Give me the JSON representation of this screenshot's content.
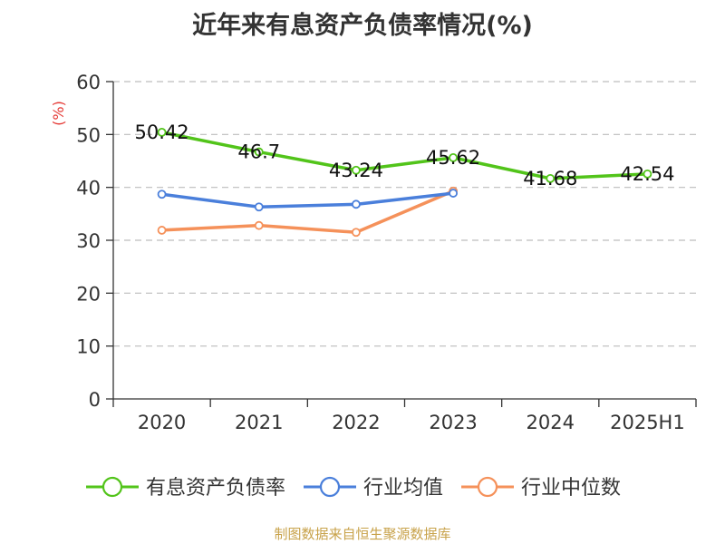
{
  "title": "近年来有息资产负债率情况(%)",
  "source_note": "制图数据来自恒生聚源数据库",
  "chart_data": {
    "type": "line",
    "title": "近年来有息资产负债率情况(%)",
    "xlabel": "",
    "ylabel": "(%)",
    "categories": [
      "2020",
      "2021",
      "2022",
      "2023",
      "2024",
      "2025H1"
    ],
    "ylim": [
      0,
      60
    ],
    "yticks": [
      0,
      10,
      20,
      30,
      40,
      50,
      60
    ],
    "grid": true,
    "legend_position": "bottom",
    "series": [
      {
        "name": "有息资产负债率",
        "color": "#52c41a",
        "values": [
          50.42,
          46.7,
          43.24,
          45.62,
          41.68,
          42.54
        ],
        "labels": [
          "50.42",
          "46.7",
          "43.24",
          "45.62",
          "41.68",
          "42.54"
        ],
        "show_labels": true
      },
      {
        "name": "行业均值",
        "color": "#4a7fdb",
        "values": [
          38.7,
          36.3,
          36.8,
          38.9,
          null,
          null
        ],
        "show_labels": false
      },
      {
        "name": "行业中位数",
        "color": "#f5915a",
        "values": [
          31.9,
          32.8,
          31.5,
          39.3,
          null,
          null
        ],
        "show_labels": false
      }
    ]
  }
}
